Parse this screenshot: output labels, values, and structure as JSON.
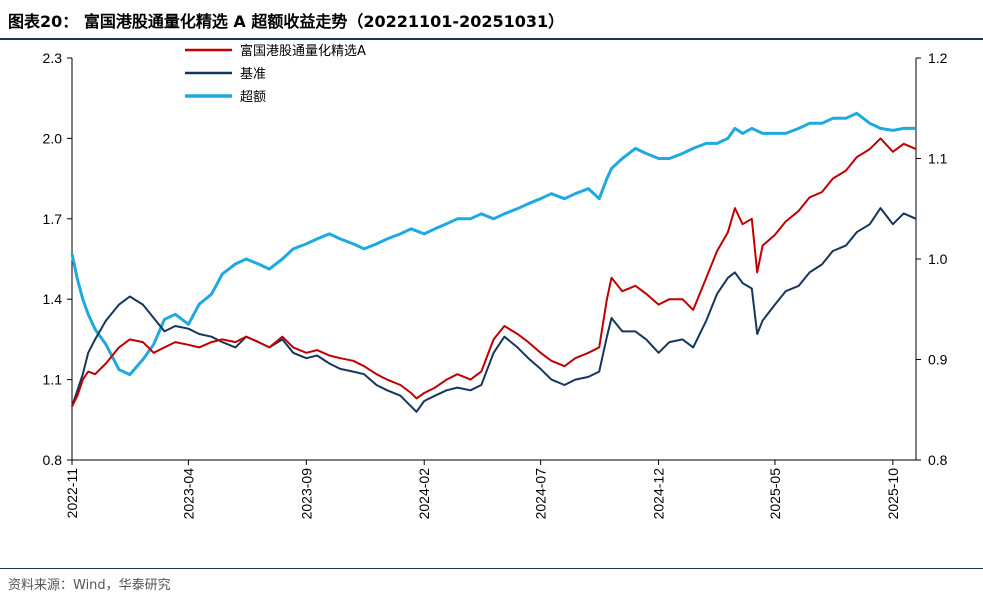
{
  "header": {
    "title": "图表20：  富国港股通量化精选 A 超额收益走势（20221101-20251031）"
  },
  "footer": {
    "source": "资料来源：Wind，华泰研究"
  },
  "colors": {
    "fund": "#c00000",
    "benchmark": "#16365c",
    "excess": "#1fa9e1",
    "rule": "#16365c"
  },
  "chart_data": {
    "type": "line",
    "x_ticks": [
      "2022-11",
      "2023-04",
      "2023-09",
      "2024-02",
      "2024-07",
      "2024-12",
      "2025-05",
      "2025-10"
    ],
    "x_range": [
      "2022-11-01",
      "2025-10-31"
    ],
    "y_left": {
      "range": [
        0.8,
        2.3
      ],
      "ticks": [
        "0.8",
        "1.1",
        "1.4",
        "1.7",
        "2.0",
        "2.3"
      ]
    },
    "y_right": {
      "range": [
        0.8,
        1.2
      ],
      "ticks": [
        "0.8",
        "0.9",
        "1.0",
        "1.1",
        "1.2"
      ]
    },
    "grid": false,
    "legend_position": "top-left",
    "series": [
      {
        "name": "富国港股通量化精选A",
        "axis": "left",
        "points": [
          [
            "2022-11-01",
            1.0
          ],
          [
            "2022-11-08",
            1.04
          ],
          [
            "2022-11-15",
            1.1
          ],
          [
            "2022-11-22",
            1.13
          ],
          [
            "2022-12-01",
            1.12
          ],
          [
            "2022-12-15",
            1.16
          ],
          [
            "2023-01-01",
            1.22
          ],
          [
            "2023-01-15",
            1.25
          ],
          [
            "2023-02-01",
            1.24
          ],
          [
            "2023-02-15",
            1.2
          ],
          [
            "2023-03-01",
            1.22
          ],
          [
            "2023-03-15",
            1.24
          ],
          [
            "2023-04-01",
            1.23
          ],
          [
            "2023-04-15",
            1.22
          ],
          [
            "2023-05-01",
            1.24
          ],
          [
            "2023-05-15",
            1.25
          ],
          [
            "2023-06-01",
            1.24
          ],
          [
            "2023-06-15",
            1.26
          ],
          [
            "2023-07-01",
            1.24
          ],
          [
            "2023-07-15",
            1.22
          ],
          [
            "2023-08-01",
            1.26
          ],
          [
            "2023-08-15",
            1.22
          ],
          [
            "2023-09-01",
            1.2
          ],
          [
            "2023-09-15",
            1.21
          ],
          [
            "2023-10-01",
            1.19
          ],
          [
            "2023-10-15",
            1.18
          ],
          [
            "2023-11-01",
            1.17
          ],
          [
            "2023-11-15",
            1.15
          ],
          [
            "2023-12-01",
            1.12
          ],
          [
            "2023-12-15",
            1.1
          ],
          [
            "2024-01-01",
            1.08
          ],
          [
            "2024-01-15",
            1.05
          ],
          [
            "2024-01-22",
            1.03
          ],
          [
            "2024-02-01",
            1.05
          ],
          [
            "2024-02-15",
            1.07
          ],
          [
            "2024-03-01",
            1.1
          ],
          [
            "2024-03-15",
            1.12
          ],
          [
            "2024-04-01",
            1.1
          ],
          [
            "2024-04-15",
            1.13
          ],
          [
            "2024-05-01",
            1.25
          ],
          [
            "2024-05-15",
            1.3
          ],
          [
            "2024-06-01",
            1.27
          ],
          [
            "2024-06-15",
            1.24
          ],
          [
            "2024-07-01",
            1.2
          ],
          [
            "2024-07-15",
            1.17
          ],
          [
            "2024-08-01",
            1.15
          ],
          [
            "2024-08-15",
            1.18
          ],
          [
            "2024-09-01",
            1.2
          ],
          [
            "2024-09-15",
            1.22
          ],
          [
            "2024-09-25",
            1.4
          ],
          [
            "2024-10-01",
            1.48
          ],
          [
            "2024-10-15",
            1.43
          ],
          [
            "2024-11-01",
            1.45
          ],
          [
            "2024-11-15",
            1.42
          ],
          [
            "2024-12-01",
            1.38
          ],
          [
            "2024-12-15",
            1.4
          ],
          [
            "2025-01-01",
            1.4
          ],
          [
            "2025-01-15",
            1.36
          ],
          [
            "2025-02-01",
            1.48
          ],
          [
            "2025-02-15",
            1.58
          ],
          [
            "2025-03-01",
            1.65
          ],
          [
            "2025-03-10",
            1.74
          ],
          [
            "2025-03-20",
            1.68
          ],
          [
            "2025-04-01",
            1.7
          ],
          [
            "2025-04-08",
            1.5
          ],
          [
            "2025-04-15",
            1.6
          ],
          [
            "2025-05-01",
            1.64
          ],
          [
            "2025-05-15",
            1.69
          ],
          [
            "2025-06-01",
            1.73
          ],
          [
            "2025-06-15",
            1.78
          ],
          [
            "2025-07-01",
            1.8
          ],
          [
            "2025-07-15",
            1.85
          ],
          [
            "2025-08-01",
            1.88
          ],
          [
            "2025-08-15",
            1.93
          ],
          [
            "2025-09-01",
            1.96
          ],
          [
            "2025-09-15",
            2.0
          ],
          [
            "2025-10-01",
            1.95
          ],
          [
            "2025-10-15",
            1.98
          ],
          [
            "2025-10-31",
            1.96
          ]
        ]
      },
      {
        "name": "基准",
        "axis": "left",
        "points": [
          [
            "2022-11-01",
            1.0
          ],
          [
            "2022-11-08",
            1.06
          ],
          [
            "2022-11-15",
            1.12
          ],
          [
            "2022-11-22",
            1.2
          ],
          [
            "2022-12-01",
            1.25
          ],
          [
            "2022-12-15",
            1.32
          ],
          [
            "2023-01-01",
            1.38
          ],
          [
            "2023-01-15",
            1.41
          ],
          [
            "2023-02-01",
            1.38
          ],
          [
            "2023-02-15",
            1.33
          ],
          [
            "2023-03-01",
            1.28
          ],
          [
            "2023-03-15",
            1.3
          ],
          [
            "2023-04-01",
            1.29
          ],
          [
            "2023-04-15",
            1.27
          ],
          [
            "2023-05-01",
            1.26
          ],
          [
            "2023-05-15",
            1.24
          ],
          [
            "2023-06-01",
            1.22
          ],
          [
            "2023-06-15",
            1.26
          ],
          [
            "2023-07-01",
            1.24
          ],
          [
            "2023-07-15",
            1.22
          ],
          [
            "2023-08-01",
            1.25
          ],
          [
            "2023-08-15",
            1.2
          ],
          [
            "2023-09-01",
            1.18
          ],
          [
            "2023-09-15",
            1.19
          ],
          [
            "2023-10-01",
            1.16
          ],
          [
            "2023-10-15",
            1.14
          ],
          [
            "2023-11-01",
            1.13
          ],
          [
            "2023-11-15",
            1.12
          ],
          [
            "2023-12-01",
            1.08
          ],
          [
            "2023-12-15",
            1.06
          ],
          [
            "2024-01-01",
            1.04
          ],
          [
            "2024-01-15",
            1.0
          ],
          [
            "2024-01-22",
            0.98
          ],
          [
            "2024-02-01",
            1.02
          ],
          [
            "2024-02-15",
            1.04
          ],
          [
            "2024-03-01",
            1.06
          ],
          [
            "2024-03-15",
            1.07
          ],
          [
            "2024-04-01",
            1.06
          ],
          [
            "2024-04-15",
            1.08
          ],
          [
            "2024-05-01",
            1.2
          ],
          [
            "2024-05-15",
            1.26
          ],
          [
            "2024-06-01",
            1.22
          ],
          [
            "2024-06-15",
            1.18
          ],
          [
            "2024-07-01",
            1.14
          ],
          [
            "2024-07-15",
            1.1
          ],
          [
            "2024-08-01",
            1.08
          ],
          [
            "2024-08-15",
            1.1
          ],
          [
            "2024-09-01",
            1.11
          ],
          [
            "2024-09-15",
            1.13
          ],
          [
            "2024-09-25",
            1.26
          ],
          [
            "2024-10-01",
            1.33
          ],
          [
            "2024-10-15",
            1.28
          ],
          [
            "2024-11-01",
            1.28
          ],
          [
            "2024-11-15",
            1.25
          ],
          [
            "2024-12-01",
            1.2
          ],
          [
            "2024-12-15",
            1.24
          ],
          [
            "2025-01-01",
            1.25
          ],
          [
            "2025-01-15",
            1.22
          ],
          [
            "2025-02-01",
            1.32
          ],
          [
            "2025-02-15",
            1.42
          ],
          [
            "2025-03-01",
            1.48
          ],
          [
            "2025-03-10",
            1.5
          ],
          [
            "2025-03-20",
            1.46
          ],
          [
            "2025-04-01",
            1.44
          ],
          [
            "2025-04-08",
            1.27
          ],
          [
            "2025-04-15",
            1.32
          ],
          [
            "2025-05-01",
            1.38
          ],
          [
            "2025-05-15",
            1.43
          ],
          [
            "2025-06-01",
            1.45
          ],
          [
            "2025-06-15",
            1.5
          ],
          [
            "2025-07-01",
            1.53
          ],
          [
            "2025-07-15",
            1.58
          ],
          [
            "2025-08-01",
            1.6
          ],
          [
            "2025-08-15",
            1.65
          ],
          [
            "2025-09-01",
            1.68
          ],
          [
            "2025-09-15",
            1.74
          ],
          [
            "2025-10-01",
            1.68
          ],
          [
            "2025-10-15",
            1.72
          ],
          [
            "2025-10-31",
            1.7
          ]
        ]
      },
      {
        "name": "超额",
        "axis": "right",
        "points": [
          [
            "2022-11-01",
            1.005
          ],
          [
            "2022-11-08",
            0.98
          ],
          [
            "2022-11-15",
            0.96
          ],
          [
            "2022-11-22",
            0.945
          ],
          [
            "2022-12-01",
            0.93
          ],
          [
            "2022-12-15",
            0.915
          ],
          [
            "2023-01-01",
            0.89
          ],
          [
            "2023-01-15",
            0.885
          ],
          [
            "2023-02-01",
            0.9
          ],
          [
            "2023-02-15",
            0.915
          ],
          [
            "2023-03-01",
            0.94
          ],
          [
            "2023-03-15",
            0.945
          ],
          [
            "2023-04-01",
            0.935
          ],
          [
            "2023-04-15",
            0.955
          ],
          [
            "2023-05-01",
            0.965
          ],
          [
            "2023-05-15",
            0.985
          ],
          [
            "2023-06-01",
            0.995
          ],
          [
            "2023-06-15",
            1.0
          ],
          [
            "2023-07-01",
            0.995
          ],
          [
            "2023-07-15",
            0.99
          ],
          [
            "2023-08-01",
            1.0
          ],
          [
            "2023-08-15",
            1.01
          ],
          [
            "2023-09-01",
            1.015
          ],
          [
            "2023-09-15",
            1.02
          ],
          [
            "2023-10-01",
            1.025
          ],
          [
            "2023-10-15",
            1.02
          ],
          [
            "2023-11-01",
            1.015
          ],
          [
            "2023-11-15",
            1.01
          ],
          [
            "2023-12-01",
            1.015
          ],
          [
            "2023-12-15",
            1.02
          ],
          [
            "2024-01-01",
            1.025
          ],
          [
            "2024-01-15",
            1.03
          ],
          [
            "2024-02-01",
            1.025
          ],
          [
            "2024-02-15",
            1.03
          ],
          [
            "2024-03-01",
            1.035
          ],
          [
            "2024-03-15",
            1.04
          ],
          [
            "2024-04-01",
            1.04
          ],
          [
            "2024-04-15",
            1.045
          ],
          [
            "2024-05-01",
            1.04
          ],
          [
            "2024-05-15",
            1.045
          ],
          [
            "2024-06-01",
            1.05
          ],
          [
            "2024-06-15",
            1.055
          ],
          [
            "2024-07-01",
            1.06
          ],
          [
            "2024-07-15",
            1.065
          ],
          [
            "2024-08-01",
            1.06
          ],
          [
            "2024-08-15",
            1.065
          ],
          [
            "2024-09-01",
            1.07
          ],
          [
            "2024-09-15",
            1.06
          ],
          [
            "2024-09-25",
            1.08
          ],
          [
            "2024-10-01",
            1.09
          ],
          [
            "2024-10-15",
            1.1
          ],
          [
            "2024-11-01",
            1.11
          ],
          [
            "2024-11-15",
            1.105
          ],
          [
            "2024-12-01",
            1.1
          ],
          [
            "2024-12-15",
            1.1
          ],
          [
            "2025-01-01",
            1.105
          ],
          [
            "2025-01-15",
            1.11
          ],
          [
            "2025-02-01",
            1.115
          ],
          [
            "2025-02-15",
            1.115
          ],
          [
            "2025-03-01",
            1.12
          ],
          [
            "2025-03-10",
            1.13
          ],
          [
            "2025-03-20",
            1.125
          ],
          [
            "2025-04-01",
            1.13
          ],
          [
            "2025-04-15",
            1.125
          ],
          [
            "2025-05-01",
            1.125
          ],
          [
            "2025-05-15",
            1.125
          ],
          [
            "2025-06-01",
            1.13
          ],
          [
            "2025-06-15",
            1.135
          ],
          [
            "2025-07-01",
            1.135
          ],
          [
            "2025-07-15",
            1.14
          ],
          [
            "2025-08-01",
            1.14
          ],
          [
            "2025-08-15",
            1.145
          ],
          [
            "2025-09-01",
            1.135
          ],
          [
            "2025-09-15",
            1.13
          ],
          [
            "2025-10-01",
            1.128
          ],
          [
            "2025-10-15",
            1.13
          ],
          [
            "2025-10-31",
            1.13
          ]
        ]
      }
    ]
  }
}
